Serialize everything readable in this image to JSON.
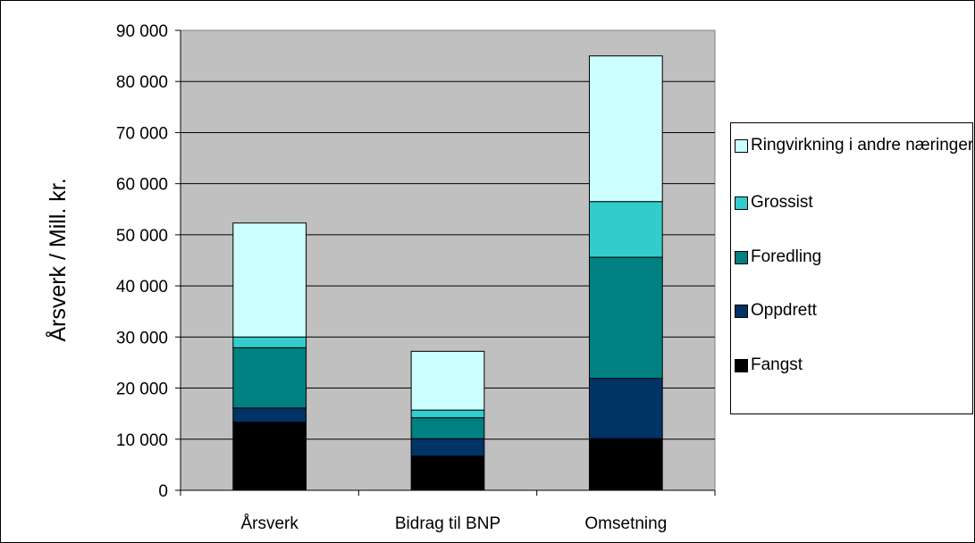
{
  "chart_data": {
    "type": "bar",
    "stacked": true,
    "categories": [
      "Årsverk",
      "Bidrag til BNP",
      "Omsetning"
    ],
    "series": [
      {
        "name": "Fangst",
        "color": "#000000",
        "values": [
          13300,
          6700,
          10100
        ]
      },
      {
        "name": "Oppdrett",
        "color": "#003366",
        "values": [
          2800,
          3400,
          11800
        ]
      },
      {
        "name": "Foredling",
        "color": "#008080",
        "values": [
          11800,
          4100,
          23700
        ]
      },
      {
        "name": "Grossist",
        "color": "#33CCCC",
        "values": [
          2100,
          1500,
          10900
        ]
      },
      {
        "name": "Ringvirkning i andre næringer",
        "color": "#CCFFFF",
        "values": [
          22300,
          11500,
          28500
        ]
      }
    ],
    "ylabel": "Årsverk / Mill. kr.",
    "ylim": [
      0,
      90000
    ],
    "yticks": [
      0,
      10000,
      20000,
      30000,
      40000,
      50000,
      60000,
      70000,
      80000,
      90000
    ],
    "ytick_labels": [
      "0",
      "10 000",
      "20 000",
      "30 000",
      "40 000",
      "50 000",
      "60 000",
      "70 000",
      "80 000",
      "90 000"
    ],
    "grid": true,
    "plot_background": "#C0C0C0",
    "legend_position": "right",
    "legend_order": [
      "Ringvirkning i andre næringer",
      "Grossist",
      "Foredling",
      "Oppdrett",
      "Fangst"
    ]
  }
}
